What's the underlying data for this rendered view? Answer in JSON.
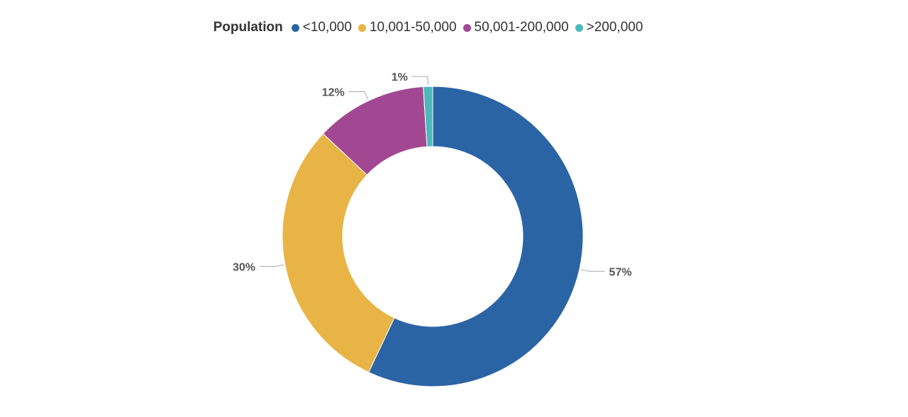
{
  "chart_data": {
    "type": "pie",
    "variant": "donut",
    "legend_title": "Population",
    "legend_position": "top-center",
    "categories": [
      "<10,000",
      "10,001-50,000",
      "50,001-200,000",
      ">200,000"
    ],
    "values": [
      57,
      30,
      12,
      1
    ],
    "labels": [
      "57%",
      "30%",
      "12%",
      "1%"
    ],
    "colors": [
      "#2a64a5",
      "#e8b445",
      "#a24893",
      "#4db8bc"
    ]
  }
}
